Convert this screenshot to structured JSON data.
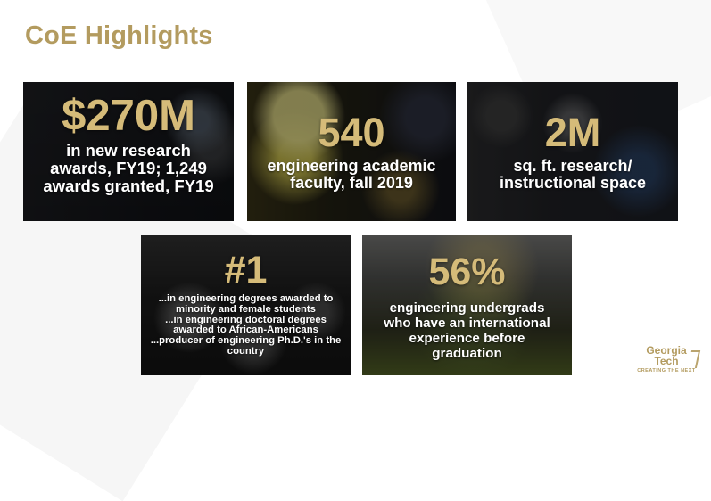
{
  "title": "CoE Highlights",
  "colors": {
    "accent": "#b39b5f",
    "value_gold": "#d5bb79",
    "white": "#ffffff"
  },
  "highlights": [
    {
      "value": "$270M",
      "description": "in new research\nawards, FY19; 1,249\nawards granted, FY19"
    },
    {
      "value": "540",
      "description": "engineering academic\nfaculty, fall 2019"
    },
    {
      "value": "2M",
      "description": "sq. ft. research/\ninstructional space"
    },
    {
      "value": "#1",
      "description": "...in engineering degrees awarded to\nminority and female students\n...in engineering doctoral degrees\nawarded to African-Americans\n...producer of engineering Ph.D.'s in the\ncountry"
    },
    {
      "value": "56%",
      "description": "engineering undergrads\nwho have an international\nexperience before\ngraduation"
    }
  ],
  "logo": {
    "text": "Georgia\nTech",
    "tagline": "CREATING THE NEXT"
  }
}
